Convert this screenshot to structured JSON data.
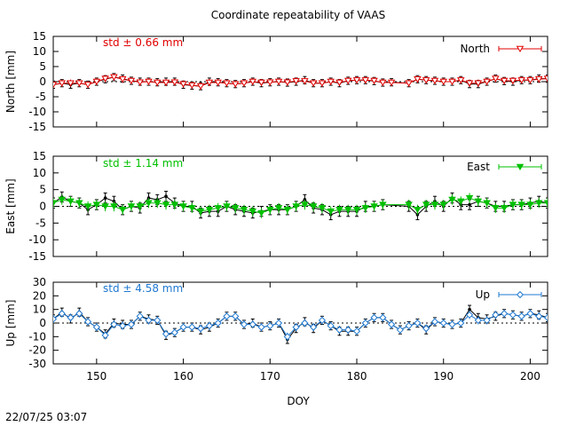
{
  "title": "Coordinate repeatability of VAAS",
  "timestamp": "22/07/25 03:07",
  "chart_data": [
    {
      "type": "line",
      "ylabel": "North [mm]",
      "xlabel": "",
      "ylim": [
        -15,
        15
      ],
      "xlim": [
        145,
        202
      ],
      "yticks": [
        15,
        10,
        5,
        0,
        -5,
        -10,
        -15
      ],
      "xticks": [
        150,
        160,
        170,
        180,
        190,
        200
      ],
      "std_label": "std ± 0.66 mm",
      "legend": "North",
      "color": "#e00000",
      "marker": "triangle-down-open",
      "x": [
        145,
        146,
        147,
        148,
        149,
        150,
        151,
        152,
        153,
        154,
        155,
        156,
        157,
        158,
        159,
        160,
        161,
        162,
        163,
        164,
        165,
        166,
        167,
        168,
        169,
        170,
        171,
        172,
        173,
        174,
        175,
        176,
        177,
        178,
        179,
        180,
        181,
        182,
        183,
        184,
        186,
        187,
        188,
        189,
        190,
        191,
        192,
        193,
        194,
        195,
        196,
        197,
        198,
        199,
        200,
        201,
        202
      ],
      "values_black": [
        -1,
        -0.5,
        -1,
        -0.5,
        -1,
        0,
        0.8,
        1.5,
        1,
        0.3,
        0,
        0,
        -0.2,
        0,
        0,
        -1,
        -1.3,
        -1.5,
        0,
        -0.2,
        -0.5,
        -0.8,
        -0.5,
        0,
        -0.5,
        -0.2,
        0,
        -0.3,
        0,
        0.5,
        -0.5,
        -0.5,
        0,
        -0.5,
        0.3,
        0.5,
        0.5,
        0.2,
        -0.3,
        -0.2,
        -0.5,
        0.8,
        0.5,
        0.3,
        0,
        0,
        0.5,
        -0.8,
        -0.8,
        0,
        1,
        0.2,
        0,
        0.5,
        0.5,
        1,
        1
      ],
      "values": [
        -1,
        -0.5,
        -0.5,
        -0.5,
        -1,
        0,
        1,
        1.5,
        0.8,
        0.3,
        -0.2,
        0,
        -0.3,
        -0.3,
        -0.2,
        -0.8,
        -1.2,
        -1.5,
        -0.3,
        -0.3,
        -0.5,
        -0.8,
        -0.5,
        0,
        -0.3,
        -0.2,
        0,
        -0.2,
        0.2,
        0.2,
        -0.5,
        -0.5,
        0,
        -0.3,
        0.3,
        0.5,
        0.5,
        0.3,
        -0.3,
        -0.3,
        -0.5,
        0.8,
        0.5,
        0.3,
        0,
        0,
        0.5,
        -0.5,
        -0.5,
        0,
        1,
        0.3,
        0.3,
        0.5,
        0.5,
        0.8,
        1
      ],
      "error": 1.2
    },
    {
      "type": "line",
      "ylabel": "East [mm]",
      "xlabel": "",
      "ylim": [
        -15,
        15
      ],
      "xlim": [
        145,
        202
      ],
      "yticks": [
        15,
        10,
        5,
        0,
        -5,
        -10,
        -15
      ],
      "xticks": [
        150,
        160,
        170,
        180,
        190,
        200
      ],
      "std_label": "std ± 1.14 mm",
      "legend": "East",
      "color": "#00c000",
      "marker": "triangle-down-filled",
      "x": [
        145,
        146,
        147,
        148,
        149,
        150,
        151,
        152,
        153,
        154,
        155,
        156,
        157,
        158,
        159,
        160,
        161,
        162,
        163,
        164,
        165,
        166,
        167,
        168,
        169,
        170,
        171,
        172,
        173,
        174,
        175,
        176,
        177,
        178,
        179,
        180,
        181,
        182,
        183,
        186,
        187,
        188,
        189,
        190,
        191,
        192,
        193,
        194,
        195,
        196,
        197,
        198,
        199,
        200,
        201,
        202
      ],
      "values_black": [
        1,
        2.8,
        1.5,
        1,
        -1,
        0.5,
        2.5,
        1.5,
        -1,
        0,
        -0.5,
        2.5,
        2,
        3,
        1,
        0,
        0,
        -2,
        -1.5,
        -1.5,
        0,
        -1,
        -1.5,
        -2,
        -1.5,
        -1,
        -1,
        -1,
        0,
        2,
        -0.5,
        -1,
        -2.5,
        -1.5,
        -1.5,
        -1.5,
        0,
        0,
        0.5,
        0,
        -2.5,
        0,
        1.5,
        0,
        2.5,
        0.5,
        0.5,
        1.5,
        1,
        0,
        0,
        0.5,
        0.5,
        1,
        1.5,
        1
      ],
      "values": [
        1,
        2,
        1.5,
        1,
        0,
        0.5,
        0,
        0,
        -1,
        0,
        0,
        1,
        1,
        0.5,
        0.5,
        0,
        -0.5,
        -1.5,
        -1,
        -0.5,
        0,
        -0.5,
        -1,
        -1.5,
        -2,
        -1,
        -0.5,
        -1,
        0,
        0.5,
        0,
        -0.5,
        -1.5,
        -1,
        -1,
        -1,
        -0.5,
        0,
        0.5,
        0.5,
        -1,
        0.5,
        0.5,
        0.5,
        2,
        1.5,
        2.5,
        1.5,
        1,
        -0.5,
        -0.5,
        0.5,
        0.5,
        0.5,
        1,
        1
      ],
      "error": 1.5
    },
    {
      "type": "line",
      "ylabel": "Up [mm]",
      "xlabel": "DOY",
      "ylim": [
        -30,
        30
      ],
      "xlim": [
        145,
        202
      ],
      "yticks": [
        30,
        20,
        10,
        0,
        -10,
        -20,
        -30
      ],
      "xticks": [
        150,
        160,
        170,
        180,
        190,
        200
      ],
      "std_label": "std ± 4.58 mm",
      "legend": "Up",
      "color": "#1f78d0",
      "marker": "diamond-open",
      "x": [
        145,
        146,
        147,
        148,
        149,
        150,
        151,
        152,
        153,
        154,
        155,
        156,
        157,
        158,
        159,
        160,
        161,
        162,
        163,
        164,
        165,
        166,
        167,
        168,
        169,
        170,
        171,
        172,
        173,
        174,
        175,
        176,
        177,
        178,
        179,
        180,
        181,
        182,
        183,
        184,
        185,
        186,
        187,
        188,
        189,
        190,
        191,
        192,
        193,
        194,
        195,
        196,
        197,
        198,
        199,
        200,
        201,
        202
      ],
      "values_black": [
        3,
        8,
        3,
        8,
        1,
        -3,
        -8,
        0,
        -1,
        -1,
        5,
        3,
        2,
        -9,
        -7,
        -3,
        -3,
        -5,
        -3,
        0,
        5,
        5,
        -1,
        0,
        -3,
        -2,
        0,
        -12,
        -4,
        1,
        -4,
        2,
        -2,
        -6,
        -6,
        -6,
        0,
        4,
        4,
        -1,
        -5,
        -2,
        0,
        -5,
        1,
        0,
        -1,
        0,
        10,
        4,
        3,
        5,
        7,
        6,
        5,
        7,
        6,
        4
      ],
      "values": [
        3,
        7,
        4,
        7,
        1,
        -3,
        -9,
        -1,
        -2,
        -1,
        5,
        2,
        2,
        -8,
        -7,
        -3,
        -3,
        -4,
        -2,
        0,
        5,
        5,
        -1,
        -1,
        -3,
        -2,
        0,
        -10,
        -3,
        0,
        -3,
        2,
        -2,
        -5,
        -5,
        -6,
        0,
        4,
        4,
        -1,
        -5,
        -2,
        0,
        -4,
        1,
        0,
        -1,
        0,
        6,
        2,
        2,
        6,
        7,
        6,
        5,
        7,
        5,
        4
      ],
      "error": 3
    }
  ],
  "axis_labels": {
    "doy": "DOY"
  }
}
